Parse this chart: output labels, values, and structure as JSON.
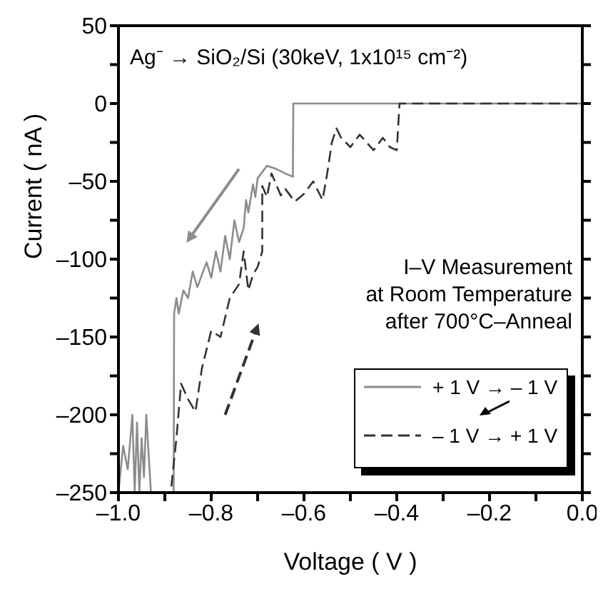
{
  "chart_data": {
    "type": "line",
    "xlabel": "Voltage ( V )",
    "ylabel": "Current ( nA )",
    "xlim": [
      -1.0,
      0.0
    ],
    "xticks": [
      {
        "value": -1.0,
        "label": "–1.0"
      },
      {
        "value": -0.9,
        "label": null
      },
      {
        "value": -0.8,
        "label": "–0.8"
      },
      {
        "value": -0.7,
        "label": null
      },
      {
        "value": -0.6,
        "label": "–0.6"
      },
      {
        "value": -0.5,
        "label": null
      },
      {
        "value": -0.4,
        "label": "–0.4"
      },
      {
        "value": -0.3,
        "label": null
      },
      {
        "value": -0.2,
        "label": "–0.2"
      },
      {
        "value": -0.1,
        "label": null
      },
      {
        "value": 0,
        "label": "0.0"
      }
    ],
    "ylim": [
      -250,
      50
    ],
    "yticks": [
      {
        "value": -250,
        "label": "–250"
      },
      {
        "value": -225,
        "label": null
      },
      {
        "value": -200,
        "label": "–200"
      },
      {
        "value": -175,
        "label": null
      },
      {
        "value": -150,
        "label": "–150"
      },
      {
        "value": -125,
        "label": null
      },
      {
        "value": -100,
        "label": "–100"
      },
      {
        "value": -75,
        "label": null
      },
      {
        "value": -50,
        "label": "–50"
      },
      {
        "value": -25,
        "label": null
      },
      {
        "value": 0,
        "label": "0"
      },
      {
        "value": 25,
        "label": null
      },
      {
        "value": 50,
        "label": "50"
      }
    ],
    "legend": "bottom right",
    "marker": "none",
    "grid": false,
    "annotations": [
      "Ag⁻ → SiO₂/Si (30keV, 1x10¹⁵ cm⁻²)",
      "I–V Measurement\nat Room Temperature\nafter 700°C–Anneal"
    ],
    "series": [
      {
        "name": "+ 1 V → – 1 V",
        "color": "#8c8c8c",
        "line_style": "solid",
        "x": [
          0,
          -0.2,
          -0.4,
          -0.623,
          -0.624,
          -0.64,
          -0.66,
          -0.68,
          -0.7,
          -0.705,
          -0.71,
          -0.72,
          -0.725,
          -0.73,
          -0.74,
          -0.75,
          -0.76,
          -0.77,
          -0.78,
          -0.79,
          -0.8,
          -0.81,
          -0.82,
          -0.83,
          -0.84,
          -0.85,
          -0.86,
          -0.87,
          -0.875,
          -0.88,
          -0.881,
          -0.93,
          -0.94,
          -0.945,
          -0.95,
          -0.955,
          -0.96,
          -0.965,
          -0.97,
          -0.98,
          -0.99,
          -1.0
        ],
        "values": [
          0,
          0,
          0,
          0,
          -47,
          -45,
          -42,
          -40,
          -48,
          -60,
          -52,
          -70,
          -62,
          -80,
          -89,
          -75,
          -100,
          -85,
          -108,
          -95,
          -112,
          -102,
          -110,
          -118,
          -108,
          -125,
          -120,
          -135,
          -125,
          -135,
          -250,
          -250,
          -200,
          -240,
          -215,
          -250,
          -205,
          -250,
          -200,
          -235,
          -220,
          -250
        ]
      },
      {
        "name": "– 1 V → + 1 V",
        "color": "#333333",
        "line_style": "dashed",
        "x": [
          -0.886,
          -0.875,
          -0.865,
          -0.85,
          -0.834,
          -0.82,
          -0.8,
          -0.78,
          -0.76,
          -0.74,
          -0.73,
          -0.72,
          -0.71,
          -0.7,
          -0.69,
          -0.69,
          -0.68,
          -0.67,
          -0.65,
          -0.64,
          -0.62,
          -0.6,
          -0.58,
          -0.56,
          -0.55,
          -0.54,
          -0.53,
          -0.52,
          -0.5,
          -0.48,
          -0.465,
          -0.45,
          -0.43,
          -0.415,
          -0.4,
          -0.394,
          -0.2,
          0
        ],
        "values": [
          -246,
          -215,
          -180,
          -190,
          -198,
          -170,
          -146,
          -150,
          -125,
          -116,
          -95,
          -120,
          -110,
          -105,
          -95,
          -53,
          -60,
          -45,
          -59,
          -55,
          -63,
          -58,
          -50,
          -62,
          -45,
          -25,
          -16,
          -22,
          -28,
          -20,
          -25,
          -30,
          -22,
          -28,
          -30,
          0,
          0,
          0
        ]
      }
    ]
  }
}
